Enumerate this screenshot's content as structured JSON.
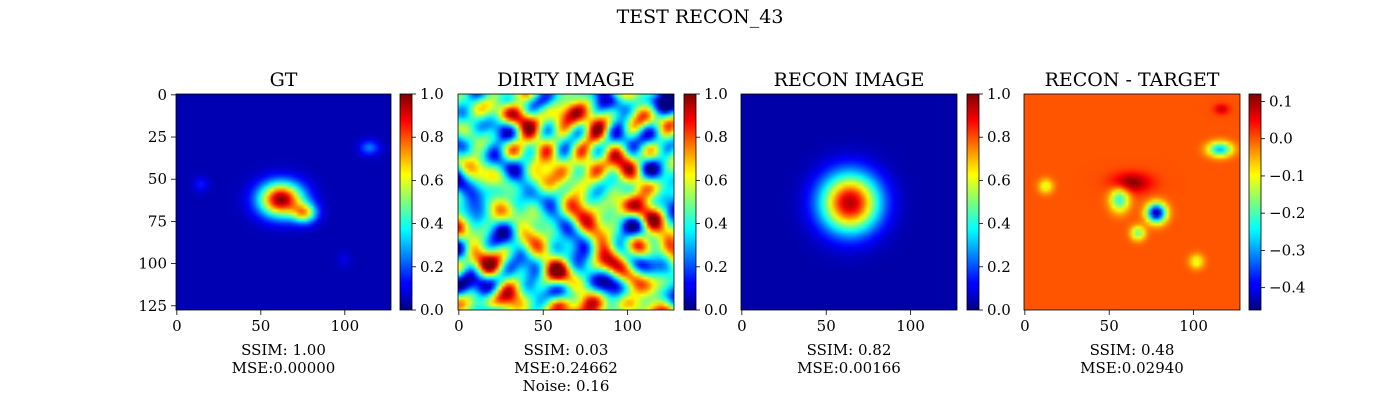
{
  "figure_title": "TEST RECON_43",
  "chart_data": [
    {
      "type": "heatmap",
      "title": "GT",
      "colormap": "jet",
      "xlim": [
        0,
        127
      ],
      "ylim": [
        127,
        0
      ],
      "xticks": [
        "0",
        "50",
        "100"
      ],
      "yticks": [
        "0",
        "25",
        "50",
        "75",
        "100",
        "125"
      ],
      "colorbar": {
        "ticks": [
          "0.0",
          "0.2",
          "0.4",
          "0.6",
          "0.8",
          "1.0"
        ],
        "range": [
          0,
          1
        ]
      },
      "metrics": [
        "SSIM: 1.00",
        "MSE:0.00000"
      ],
      "blobs": [
        {
          "x": 62,
          "y": 62,
          "sx": 9,
          "sy": 7,
          "value": 1.0
        },
        {
          "x": 76,
          "y": 70,
          "sx": 5,
          "sy": 4,
          "value": 0.6
        },
        {
          "x": 115,
          "y": 31,
          "sx": 4,
          "sy": 3,
          "value": 0.25
        },
        {
          "x": 14,
          "y": 53,
          "sx": 3,
          "sy": 3,
          "value": 0.15
        },
        {
          "x": 100,
          "y": 98,
          "sx": 3,
          "sy": 3,
          "value": 0.1
        }
      ],
      "background": 0.05
    },
    {
      "type": "heatmap",
      "title": "DIRTY IMAGE",
      "colormap": "jet",
      "xlim": [
        0,
        127
      ],
      "ylim": [
        127,
        0
      ],
      "xticks": [
        "0",
        "50",
        "100"
      ],
      "yticks": [],
      "colorbar": {
        "ticks": [
          "0.0",
          "0.2",
          "0.4",
          "0.6",
          "0.8",
          "1.0"
        ],
        "range": [
          0,
          1
        ]
      },
      "metrics": [
        "SSIM: 0.03",
        "MSE:0.24662",
        "Noise: 0.16"
      ],
      "pattern": "noise",
      "background": 0.45
    },
    {
      "type": "heatmap",
      "title": "RECON IMAGE",
      "colormap": "jet",
      "xlim": [
        0,
        127
      ],
      "ylim": [
        127,
        0
      ],
      "xticks": [
        "0",
        "50",
        "100"
      ],
      "yticks": [],
      "colorbar": {
        "ticks": [
          "0.0",
          "0.2",
          "0.4",
          "0.6",
          "0.8",
          "1.0"
        ],
        "range": [
          0,
          1
        ]
      },
      "metrics": [
        "SSIM: 0.82",
        "MSE:0.00166"
      ],
      "blobs": [
        {
          "x": 64,
          "y": 64,
          "sx": 12,
          "sy": 12,
          "value": 0.95
        }
      ],
      "background": 0.04
    },
    {
      "type": "heatmap",
      "title": "RECON - TARGET",
      "colormap": "jet",
      "xlim": [
        0,
        127
      ],
      "ylim": [
        127,
        0
      ],
      "xticks": [
        "0",
        "50",
        "100"
      ],
      "yticks": [],
      "colorbar": {
        "ticks": [
          "0.1",
          "0.0",
          "−0.1",
          "−0.2",
          "−0.3",
          "−0.4"
        ],
        "range": [
          -0.46,
          0.12
        ]
      },
      "metrics": [
        "SSIM: 0.48",
        "MSE:0.02940"
      ],
      "blobs": [
        {
          "x": 63,
          "y": 52,
          "sx": 8,
          "sy": 4,
          "value": 0.12
        },
        {
          "x": 78,
          "y": 70,
          "sx": 4,
          "sy": 4,
          "value": -0.45
        },
        {
          "x": 56,
          "y": 62,
          "sx": 4,
          "sy": 5,
          "value": -0.22
        },
        {
          "x": 67,
          "y": 82,
          "sx": 3,
          "sy": 3,
          "value": -0.18
        },
        {
          "x": 116,
          "y": 32,
          "sx": 5,
          "sy": 3,
          "value": -0.28
        },
        {
          "x": 12,
          "y": 54,
          "sx": 3,
          "sy": 3,
          "value": -0.12
        },
        {
          "x": 102,
          "y": 99,
          "sx": 3,
          "sy": 3,
          "value": -0.12
        },
        {
          "x": 117,
          "y": 8,
          "sx": 3,
          "sy": 2,
          "value": 0.08
        }
      ],
      "background": 0.0
    }
  ]
}
